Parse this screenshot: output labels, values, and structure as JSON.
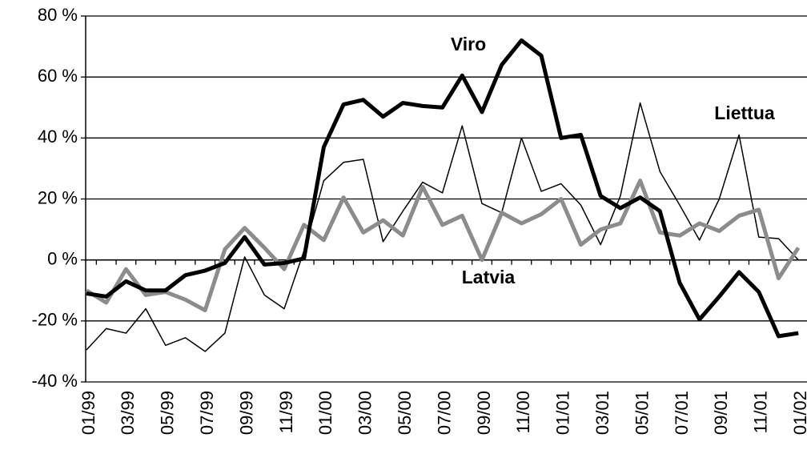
{
  "chart_data": {
    "type": "line",
    "categories": [
      "01/99",
      null,
      "03/99",
      null,
      "05/99",
      null,
      "07/99",
      null,
      "09/99",
      null,
      "11/99",
      null,
      "01/00",
      null,
      "03/00",
      null,
      "05/00",
      null,
      "07/00",
      null,
      "09/00",
      null,
      "11/00",
      null,
      "01/01",
      null,
      "03/01",
      null,
      "05/01",
      null,
      "07/01",
      null,
      "09/01",
      null,
      "11/01",
      null,
      "01/02"
    ],
    "series": [
      {
        "name": "Viro",
        "color": "#000000",
        "width": 5,
        "values": [
          -11,
          -12,
          -7,
          -10,
          -10,
          -5,
          -3.5,
          -1,
          7.5,
          -1.5,
          -1,
          0.5,
          37,
          51,
          52.5,
          47,
          51.5,
          50.5,
          50,
          60.5,
          48.5,
          64,
          72,
          67,
          40,
          41,
          21,
          17,
          20.5,
          16,
          -7.5,
          -19.5,
          -12,
          -4,
          -10.5,
          -25,
          -24
        ]
      },
      {
        "name": "Liettua",
        "color": "#000000",
        "width": 1.5,
        "values": [
          -29.5,
          -22.5,
          -24,
          -16,
          -28,
          -25.5,
          -30,
          -24,
          1,
          -11.5,
          -16,
          3,
          26,
          32,
          33,
          6,
          16,
          25.5,
          22,
          44,
          18.5,
          15.5,
          40,
          22.5,
          25,
          18,
          5,
          21,
          51.5,
          29,
          18,
          6.5,
          20,
          41,
          7.5,
          7,
          0
        ]
      },
      {
        "name": "Latvia",
        "color": "#8c8c8c",
        "width": 5,
        "values": [
          -10,
          -14,
          -3,
          -11.5,
          -10.5,
          -13,
          -16.5,
          3.5,
          10.5,
          4,
          -3,
          11.5,
          6.5,
          20.5,
          9,
          13,
          8,
          24,
          11.5,
          14.5,
          0,
          15.5,
          12,
          15,
          20,
          5,
          10,
          12,
          26,
          9,
          8,
          12,
          9.5,
          14.5,
          16.5,
          -6,
          4
        ]
      }
    ],
    "ylim": [
      -40,
      80
    ],
    "yticks": [
      {
        "value": -40,
        "label": "-40 %"
      },
      {
        "value": -20,
        "label": "-20 %"
      },
      {
        "value": 0,
        "label": "0 %"
      },
      {
        "value": 20,
        "label": "20 %"
      },
      {
        "value": 40,
        "label": "40 %"
      },
      {
        "value": 60,
        "label": "60 %"
      },
      {
        "value": 80,
        "label": "80 %"
      }
    ],
    "grid": true
  }
}
